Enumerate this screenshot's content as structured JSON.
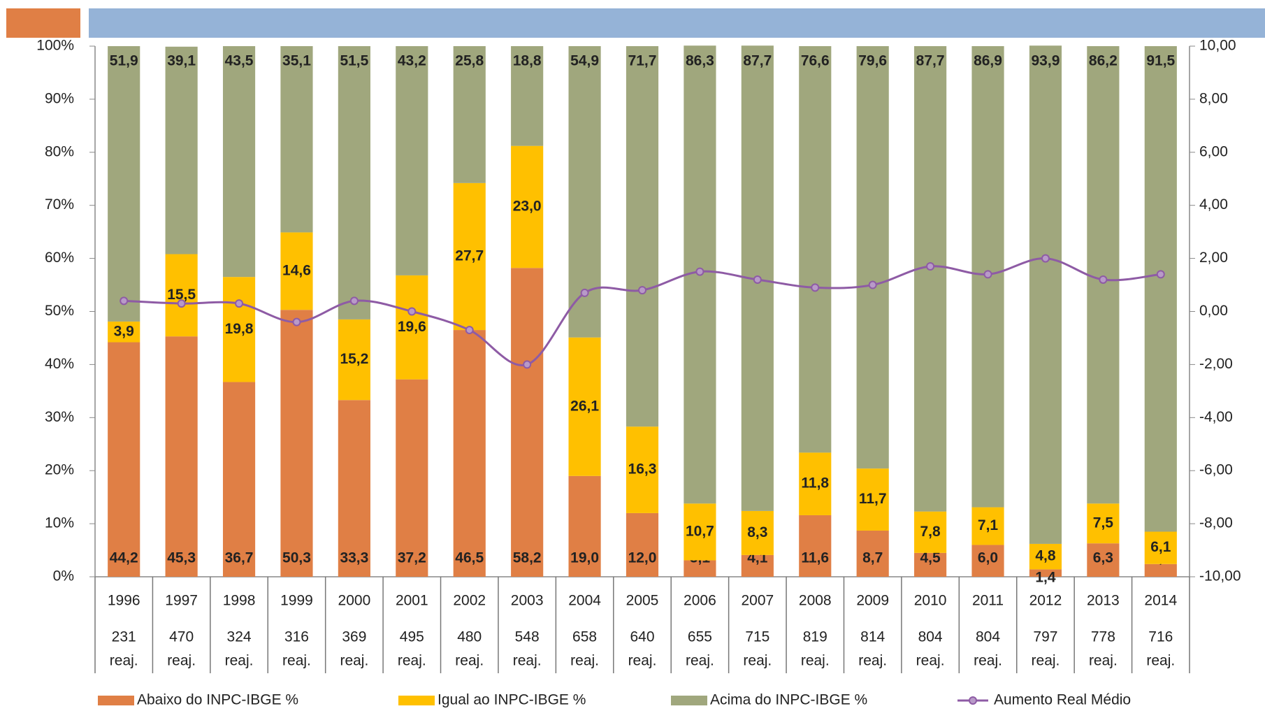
{
  "chart_data": {
    "type": "bar",
    "categories": [
      "1996",
      "1997",
      "1998",
      "1999",
      "2000",
      "2001",
      "2002",
      "2003",
      "2004",
      "2005",
      "2006",
      "2007",
      "2008",
      "2009",
      "2010",
      "2011",
      "2012",
      "2013",
      "2014"
    ],
    "counts": [
      231,
      470,
      324,
      316,
      369,
      495,
      480,
      548,
      658,
      640,
      655,
      715,
      819,
      814,
      804,
      804,
      797,
      778,
      716
    ],
    "count_unit": "reaj.",
    "series": [
      {
        "name": "Abaixo do INPC-IBGE %",
        "color": "#e07f45",
        "values": [
          44.2,
          45.3,
          36.7,
          50.3,
          33.3,
          37.2,
          46.5,
          58.2,
          19.0,
          12.0,
          3.1,
          4.1,
          11.6,
          8.7,
          4.5,
          6.0,
          1.4,
          6.3,
          2.4
        ],
        "value_labels": [
          "44,2",
          "45,3",
          "36,7",
          "50,3",
          "33,3",
          "37,2",
          "46,5",
          "58,2",
          "19,0",
          "12,0",
          "3,1",
          "4,1",
          "11,6",
          "8,7",
          "4,5",
          "6,0",
          "1,4",
          "6,3",
          "2,4"
        ]
      },
      {
        "name": "Igual ao INPC-IBGE %",
        "color": "#ffc000",
        "values": [
          3.9,
          15.5,
          19.8,
          14.6,
          15.2,
          19.6,
          27.7,
          23.0,
          26.1,
          16.3,
          10.7,
          8.3,
          11.8,
          11.7,
          7.8,
          7.1,
          4.8,
          7.5,
          6.1
        ],
        "value_labels": [
          "3,9",
          "15,5",
          "19,8",
          "14,6",
          "15,2",
          "19,6",
          "27,7",
          "23,0",
          "26,1",
          "16,3",
          "10,7",
          "8,3",
          "11,8",
          "11,7",
          "7,8",
          "7,1",
          "4,8",
          "7,5",
          "6,1"
        ]
      },
      {
        "name": "Acima do INPC-IBGE %",
        "color": "#a0a77d",
        "values": [
          51.9,
          39.1,
          43.5,
          35.1,
          51.5,
          43.2,
          25.8,
          18.8,
          54.9,
          71.7,
          86.3,
          87.7,
          76.6,
          79.6,
          87.7,
          86.9,
          93.9,
          86.2,
          91.5
        ],
        "value_labels": [
          "51,9",
          "39,1",
          "43,5",
          "35,1",
          "51,5",
          "43,2",
          "25,8",
          "18,8",
          "54,9",
          "71,7",
          "86,3",
          "87,7",
          "76,6",
          "79,6",
          "87,7",
          "86,9",
          "93,9",
          "86,2",
          "91,5"
        ]
      },
      {
        "name": "Aumento Real Médio",
        "color": "#8e5ba5",
        "axis": "y2",
        "type": "line",
        "values": [
          0.4,
          0.3,
          0.3,
          -0.4,
          0.4,
          0.0,
          -0.7,
          -2.0,
          0.7,
          0.8,
          1.5,
          1.2,
          0.9,
          1.0,
          1.7,
          1.4,
          2.0,
          1.2,
          1.4
        ]
      }
    ],
    "ylim": [
      0,
      100
    ],
    "yticks": [
      {
        "value": 0,
        "label": "0%"
      },
      {
        "value": 10,
        "label": "10%"
      },
      {
        "value": 20,
        "label": "20%"
      },
      {
        "value": 30,
        "label": "30%"
      },
      {
        "value": 40,
        "label": "40%"
      },
      {
        "value": 50,
        "label": "50%"
      },
      {
        "value": 60,
        "label": "60%"
      },
      {
        "value": 70,
        "label": "70%"
      },
      {
        "value": 80,
        "label": "80%"
      },
      {
        "value": 90,
        "label": "90%"
      },
      {
        "value": 100,
        "label": "100%"
      }
    ],
    "y2lim": [
      -10,
      10
    ],
    "y2ticks": [
      {
        "value": -10,
        "label": "-10,00"
      },
      {
        "value": -8,
        "label": "-8,00"
      },
      {
        "value": -6,
        "label": "-6,00"
      },
      {
        "value": -4,
        "label": "-4,00"
      },
      {
        "value": -2,
        "label": "-2,00"
      },
      {
        "value": 0,
        "label": "0,00"
      },
      {
        "value": 2,
        "label": "2,00"
      },
      {
        "value": 4,
        "label": "4,00"
      },
      {
        "value": 6,
        "label": "6,00"
      },
      {
        "value": 8,
        "label": "8,00"
      },
      {
        "value": 10,
        "label": "10,00"
      }
    ],
    "legend": "bottom"
  }
}
